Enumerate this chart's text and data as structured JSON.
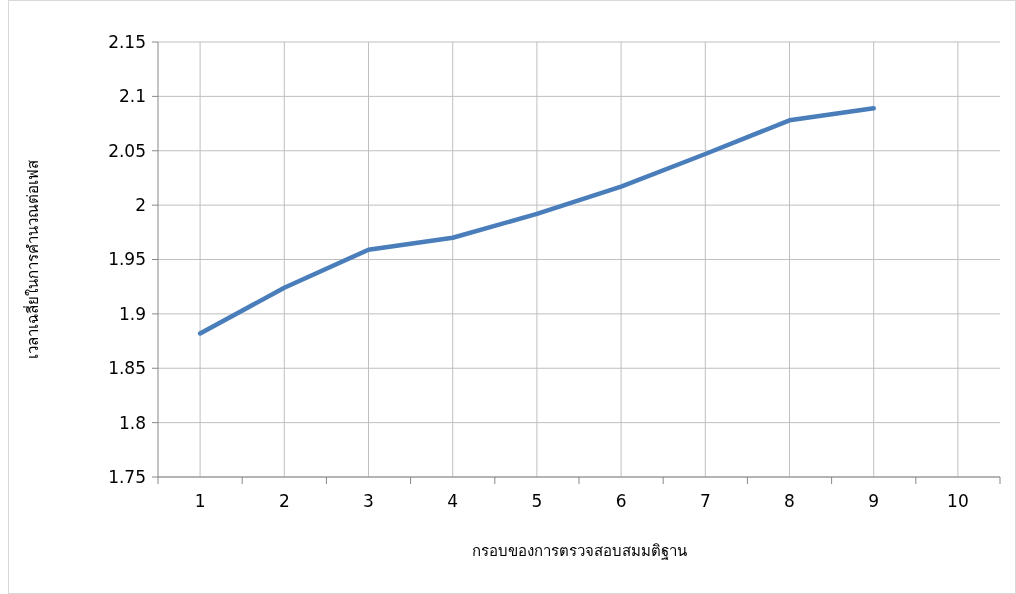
{
  "chart_data": {
    "type": "line",
    "xlabel": "กรอบของการตรวจสอบสมมติฐาน",
    "ylabel": "เวลาเฉลี่ยในการคำนวณต่อเฟส",
    "categories": [
      "1",
      "2",
      "3",
      "4",
      "5",
      "6",
      "7",
      "8",
      "9",
      "10"
    ],
    "series": [
      {
        "color": "#4a7ebb",
        "values": [
          1.882,
          1.924,
          1.959,
          1.97,
          1.992,
          2.017,
          2.047,
          2.078,
          2.089,
          null
        ]
      }
    ],
    "ylim": [
      1.75,
      2.15
    ],
    "yticks": [
      1.75,
      1.8,
      1.85,
      1.9,
      1.95,
      2,
      2.05,
      2.1,
      2.15
    ],
    "grid": true,
    "marker": "none",
    "line_style": "solid"
  }
}
